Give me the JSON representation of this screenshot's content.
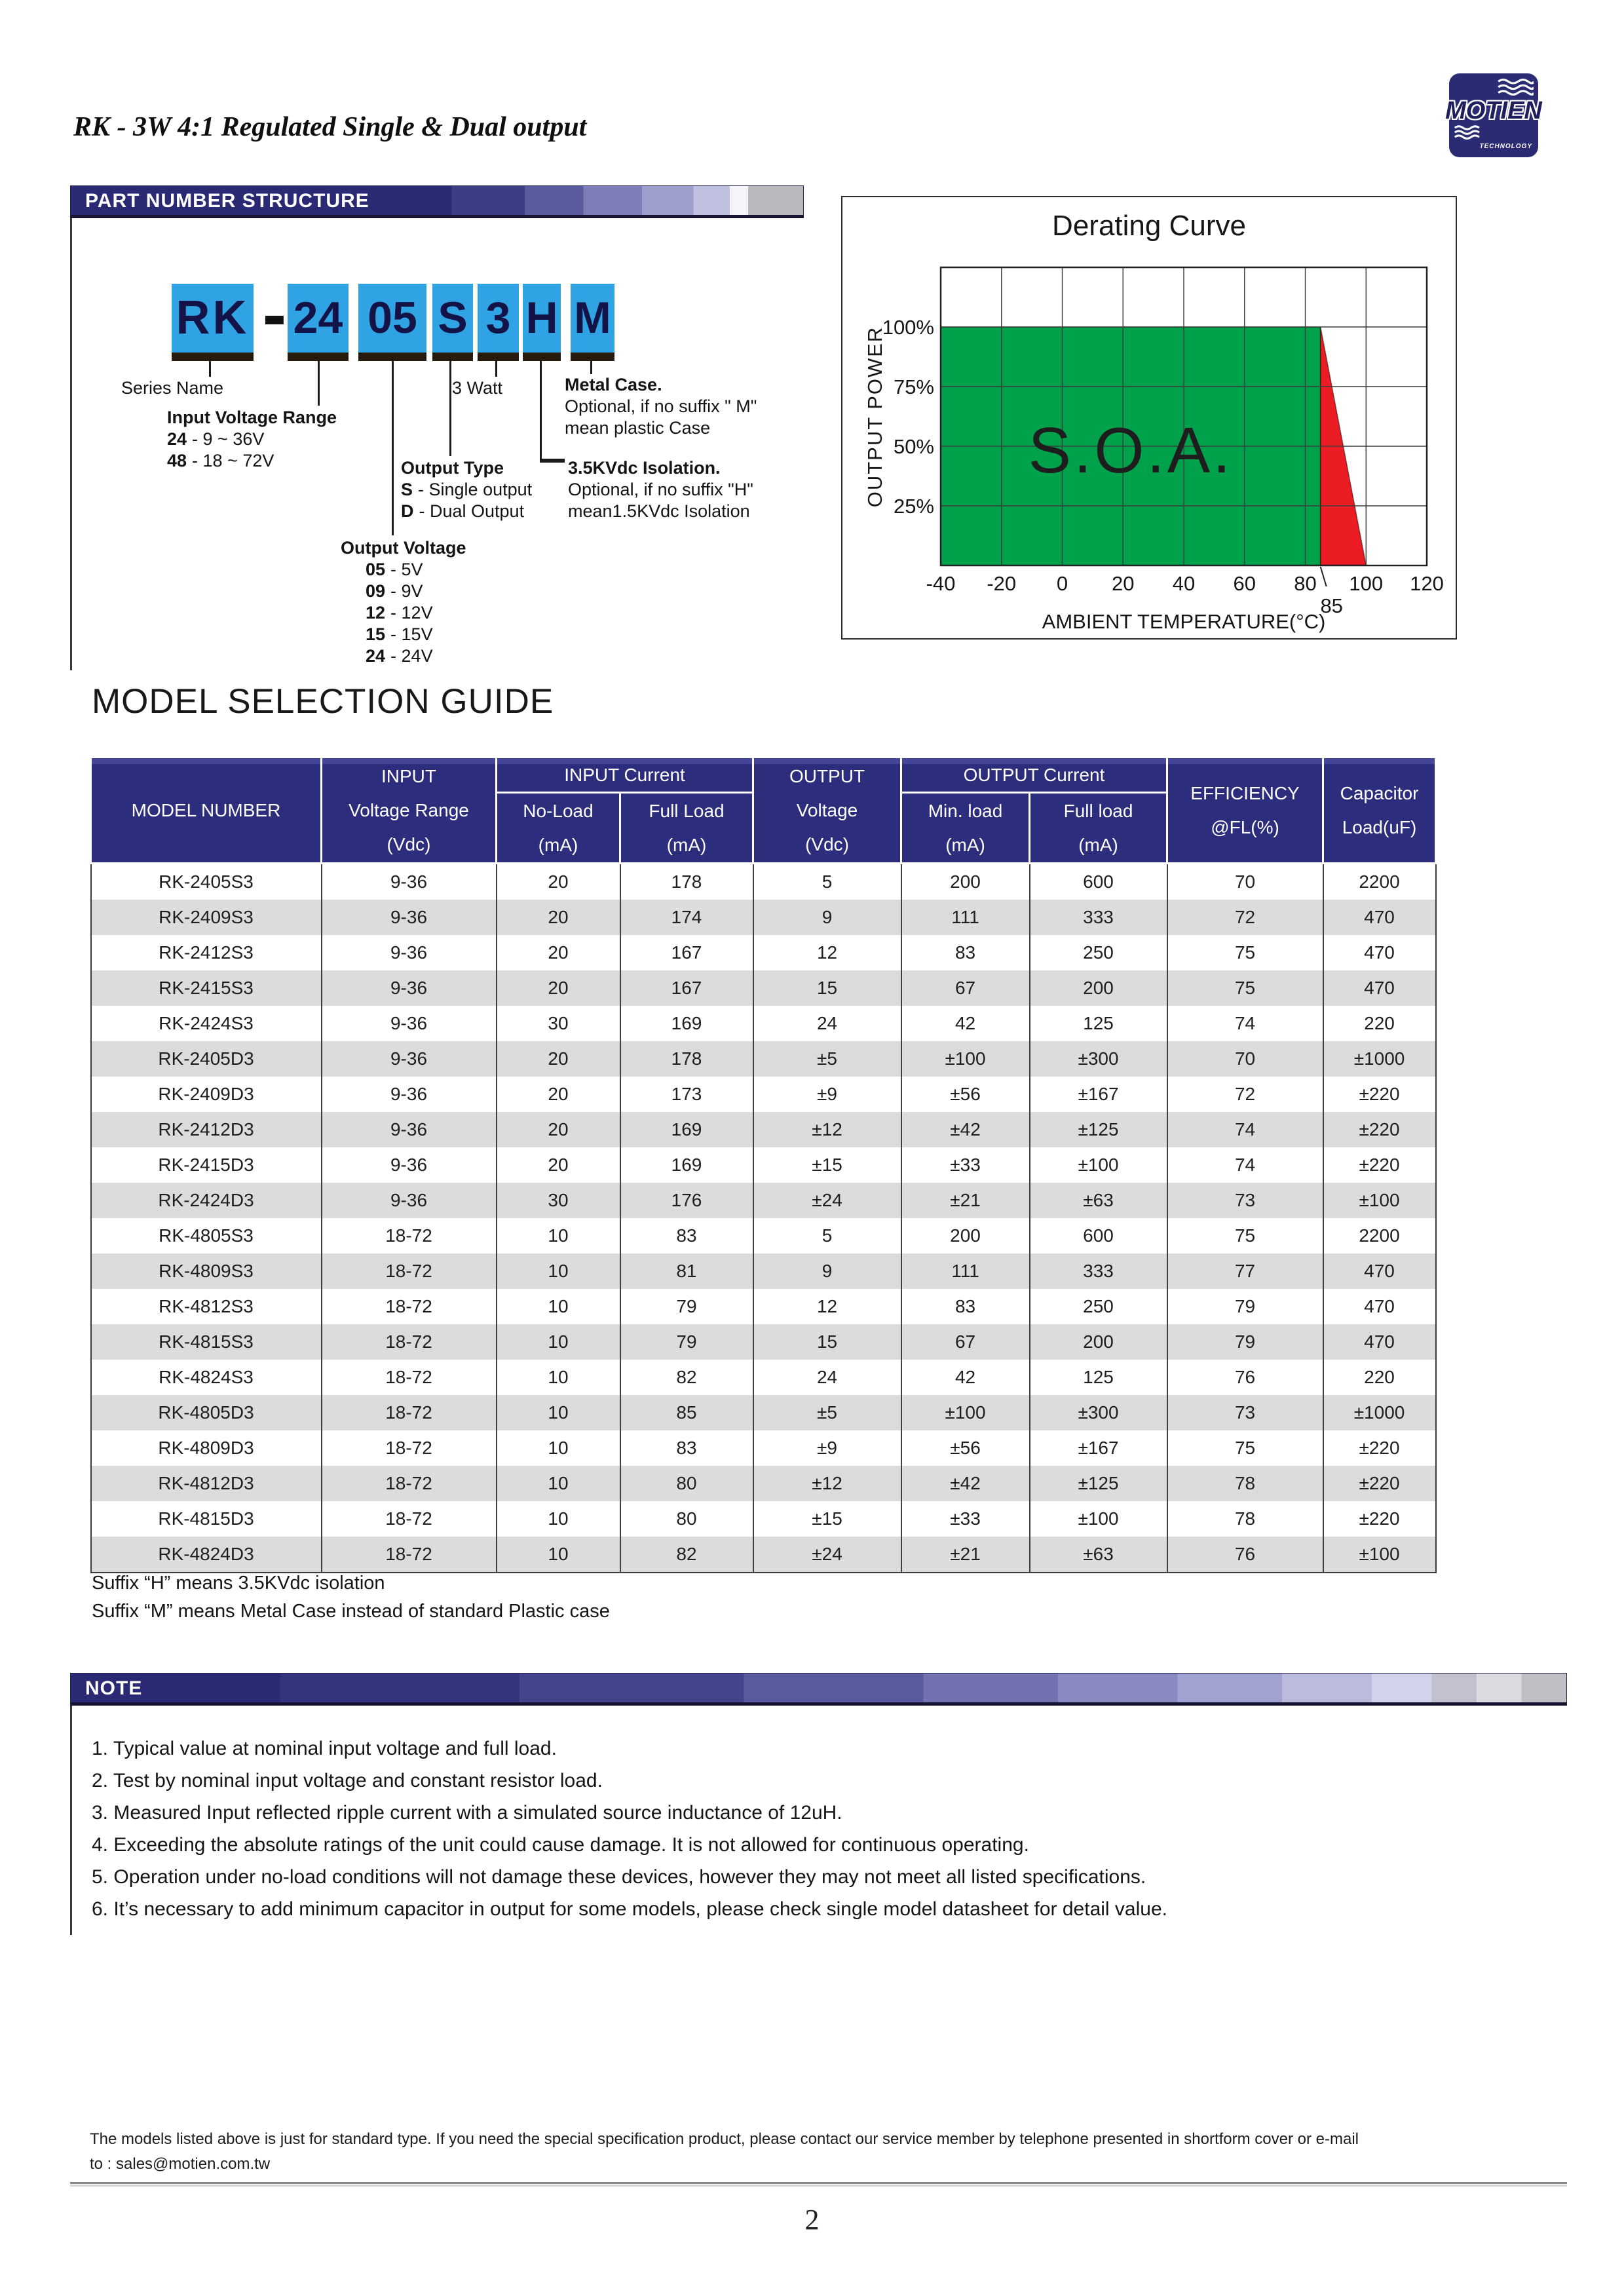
{
  "page": {
    "title": "RK - 3W 4:1 Regulated Single & Dual output",
    "page_number": "2",
    "footer_line1": "The models listed above is just for standard type. If you need the special specification product, please contact our service member by telephone presented in shortform cover or e-mail",
    "footer_line2": "to : sales@motien.com.tw"
  },
  "logo": {
    "name": "MOTIEN",
    "sub": "TECHNOLOGY",
    "bg_color": "#2b2b74"
  },
  "pns": {
    "header": "PART NUMBER STRUCTURE",
    "segments": [
      "RK",
      "-",
      "24",
      "05",
      "S",
      "3",
      "H",
      "M"
    ],
    "series_name": "Series Name",
    "watt": "3 Watt",
    "metal_case": {
      "title": "Metal Case.",
      "line1": "Optional, if no suffix \" M\"",
      "line2": "mean plastic Case"
    },
    "input_voltage": {
      "title": "Input Voltage Range",
      "options": [
        {
          "code": "24",
          "text": "- 9 ~ 36V"
        },
        {
          "code": "48",
          "text": "- 18 ~ 72V"
        }
      ]
    },
    "output_type": {
      "title": "Output Type",
      "options": [
        {
          "code": "S",
          "text": "- Single output"
        },
        {
          "code": "D",
          "text": "- Dual Output"
        }
      ]
    },
    "isolation": {
      "title": "3.5KVdc Isolation.",
      "line1": "Optional, if no  suffix \"H\"",
      "line2": "mean1.5KVdc Isolation"
    },
    "output_voltage": {
      "title": "Output Voltage",
      "options": [
        {
          "code": "05",
          "text": "- 5V"
        },
        {
          "code": "09",
          "text": "- 9V"
        },
        {
          "code": "12",
          "text": "- 12V"
        },
        {
          "code": "15",
          "text": "- 15V"
        },
        {
          "code": "24",
          "text": "- 24V"
        }
      ]
    }
  },
  "chart_data": {
    "type": "area",
    "title": "Derating Curve",
    "xlabel": "AMBIENT TEMPERATURE(°C)",
    "ylabel": "OUTPUT POWER",
    "xlim": [
      -40,
      120
    ],
    "ylim_pct": [
      0,
      125
    ],
    "x_ticks": [
      -40,
      -20,
      0,
      20,
      40,
      60,
      80,
      100,
      120
    ],
    "x_extra_tick": 85,
    "y_grid_pct": [
      0,
      25,
      50,
      75,
      100,
      125
    ],
    "y_tick_values": [
      100,
      75,
      50,
      25
    ],
    "y_tick_labels": [
      "100%",
      "75%",
      "50%",
      "25%"
    ],
    "soa_label": "S.O.A.",
    "grid": true,
    "colors": {
      "safe": "#00A14B",
      "derate": "#EC1C24"
    },
    "regions": [
      {
        "name": "safe-operating-area",
        "color_key": "safe",
        "points_t_pct": [
          [
            -40,
            0
          ],
          [
            -40,
            100
          ],
          [
            85,
            100
          ],
          [
            85,
            0
          ]
        ]
      },
      {
        "name": "derating-region",
        "color_key": "derate",
        "points_t_pct": [
          [
            85,
            100
          ],
          [
            100,
            0
          ],
          [
            85,
            0
          ]
        ]
      }
    ]
  },
  "table": {
    "title": "MODEL SELECTION GUIDE",
    "header": {
      "model_number": "MODEL NUMBER",
      "input": "INPUT",
      "input_sub": "Voltage Range",
      "input_unit": "(Vdc)",
      "input_current": "INPUT Current",
      "no_load": "No-Load",
      "no_load_unit": "(mA)",
      "full_load": "Full Load",
      "full_load_unit": "(mA)",
      "output": "OUTPUT",
      "output_sub": "Voltage",
      "output_unit": "(Vdc)",
      "output_current": "OUTPUT Current",
      "min_load": "Min. load",
      "min_load_unit": "(mA)",
      "out_full_load": "Full load",
      "out_full_load_unit": "(mA)",
      "efficiency": "EFFICIENCY",
      "efficiency_sub": "@FL(%)",
      "capacitor": "Capacitor",
      "capacitor_sub": "Load(uF)"
    },
    "rows": [
      [
        "RK-2405S3",
        "9-36",
        "20",
        "178",
        "5",
        "200",
        "600",
        "70",
        "2200"
      ],
      [
        "RK-2409S3",
        "9-36",
        "20",
        "174",
        "9",
        "111",
        "333",
        "72",
        "470"
      ],
      [
        "RK-2412S3",
        "9-36",
        "20",
        "167",
        "12",
        "83",
        "250",
        "75",
        "470"
      ],
      [
        "RK-2415S3",
        "9-36",
        "20",
        "167",
        "15",
        "67",
        "200",
        "75",
        "470"
      ],
      [
        "RK-2424S3",
        "9-36",
        "30",
        "169",
        "24",
        "42",
        "125",
        "74",
        "220"
      ],
      [
        "RK-2405D3",
        "9-36",
        "20",
        "178",
        "±5",
        "±100",
        "±300",
        "70",
        "±1000"
      ],
      [
        "RK-2409D3",
        "9-36",
        "20",
        "173",
        "±9",
        "±56",
        "±167",
        "72",
        "±220"
      ],
      [
        "RK-2412D3",
        "9-36",
        "20",
        "169",
        "±12",
        "±42",
        "±125",
        "74",
        "±220"
      ],
      [
        "RK-2415D3",
        "9-36",
        "20",
        "169",
        "±15",
        "±33",
        "±100",
        "74",
        "±220"
      ],
      [
        "RK-2424D3",
        "9-36",
        "30",
        "176",
        "±24",
        "±21",
        "±63",
        "73",
        "±100"
      ],
      [
        "RK-4805S3",
        "18-72",
        "10",
        "83",
        "5",
        "200",
        "600",
        "75",
        "2200"
      ],
      [
        "RK-4809S3",
        "18-72",
        "10",
        "81",
        "9",
        "111",
        "333",
        "77",
        "470"
      ],
      [
        "RK-4812S3",
        "18-72",
        "10",
        "79",
        "12",
        "83",
        "250",
        "79",
        "470"
      ],
      [
        "RK-4815S3",
        "18-72",
        "10",
        "79",
        "15",
        "67",
        "200",
        "79",
        "470"
      ],
      [
        "RK-4824S3",
        "18-72",
        "10",
        "82",
        "24",
        "42",
        "125",
        "76",
        "220"
      ],
      [
        "RK-4805D3",
        "18-72",
        "10",
        "85",
        "±5",
        "±100",
        "±300",
        "73",
        "±1000"
      ],
      [
        "RK-4809D3",
        "18-72",
        "10",
        "83",
        "±9",
        "±56",
        "±167",
        "75",
        "±220"
      ],
      [
        "RK-4812D3",
        "18-72",
        "10",
        "80",
        "±12",
        "±42",
        "±125",
        "78",
        "±220"
      ],
      [
        "RK-4815D3",
        "18-72",
        "10",
        "80",
        "±15",
        "±33",
        "±100",
        "78",
        "±220"
      ],
      [
        "RK-4824D3",
        "18-72",
        "10",
        "82",
        "±24",
        "±21",
        "±63",
        "76",
        "±100"
      ]
    ],
    "suffix_note1": "Suffix “H” means 3.5KVdc isolation",
    "suffix_note2": "Suffix “M” means Metal Case instead of standard Plastic case"
  },
  "notes": {
    "header": "NOTE",
    "items": [
      "1. Typical value at nominal input voltage and full load.",
      "2. Test by nominal input voltage and constant resistor load.",
      "3. Measured Input reflected ripple current with a simulated source inductance of 12uH.",
      "4. Exceeding the absolute ratings of the unit could cause damage.  It is not allowed for continuous operating.",
      "5. Operation under no-load conditions will not damage these devices, however they may not meet all listed specifications.",
      "6. It’s necessary to add minimum capacitor in output for some models, please check single model datasheet for detail value."
    ]
  }
}
